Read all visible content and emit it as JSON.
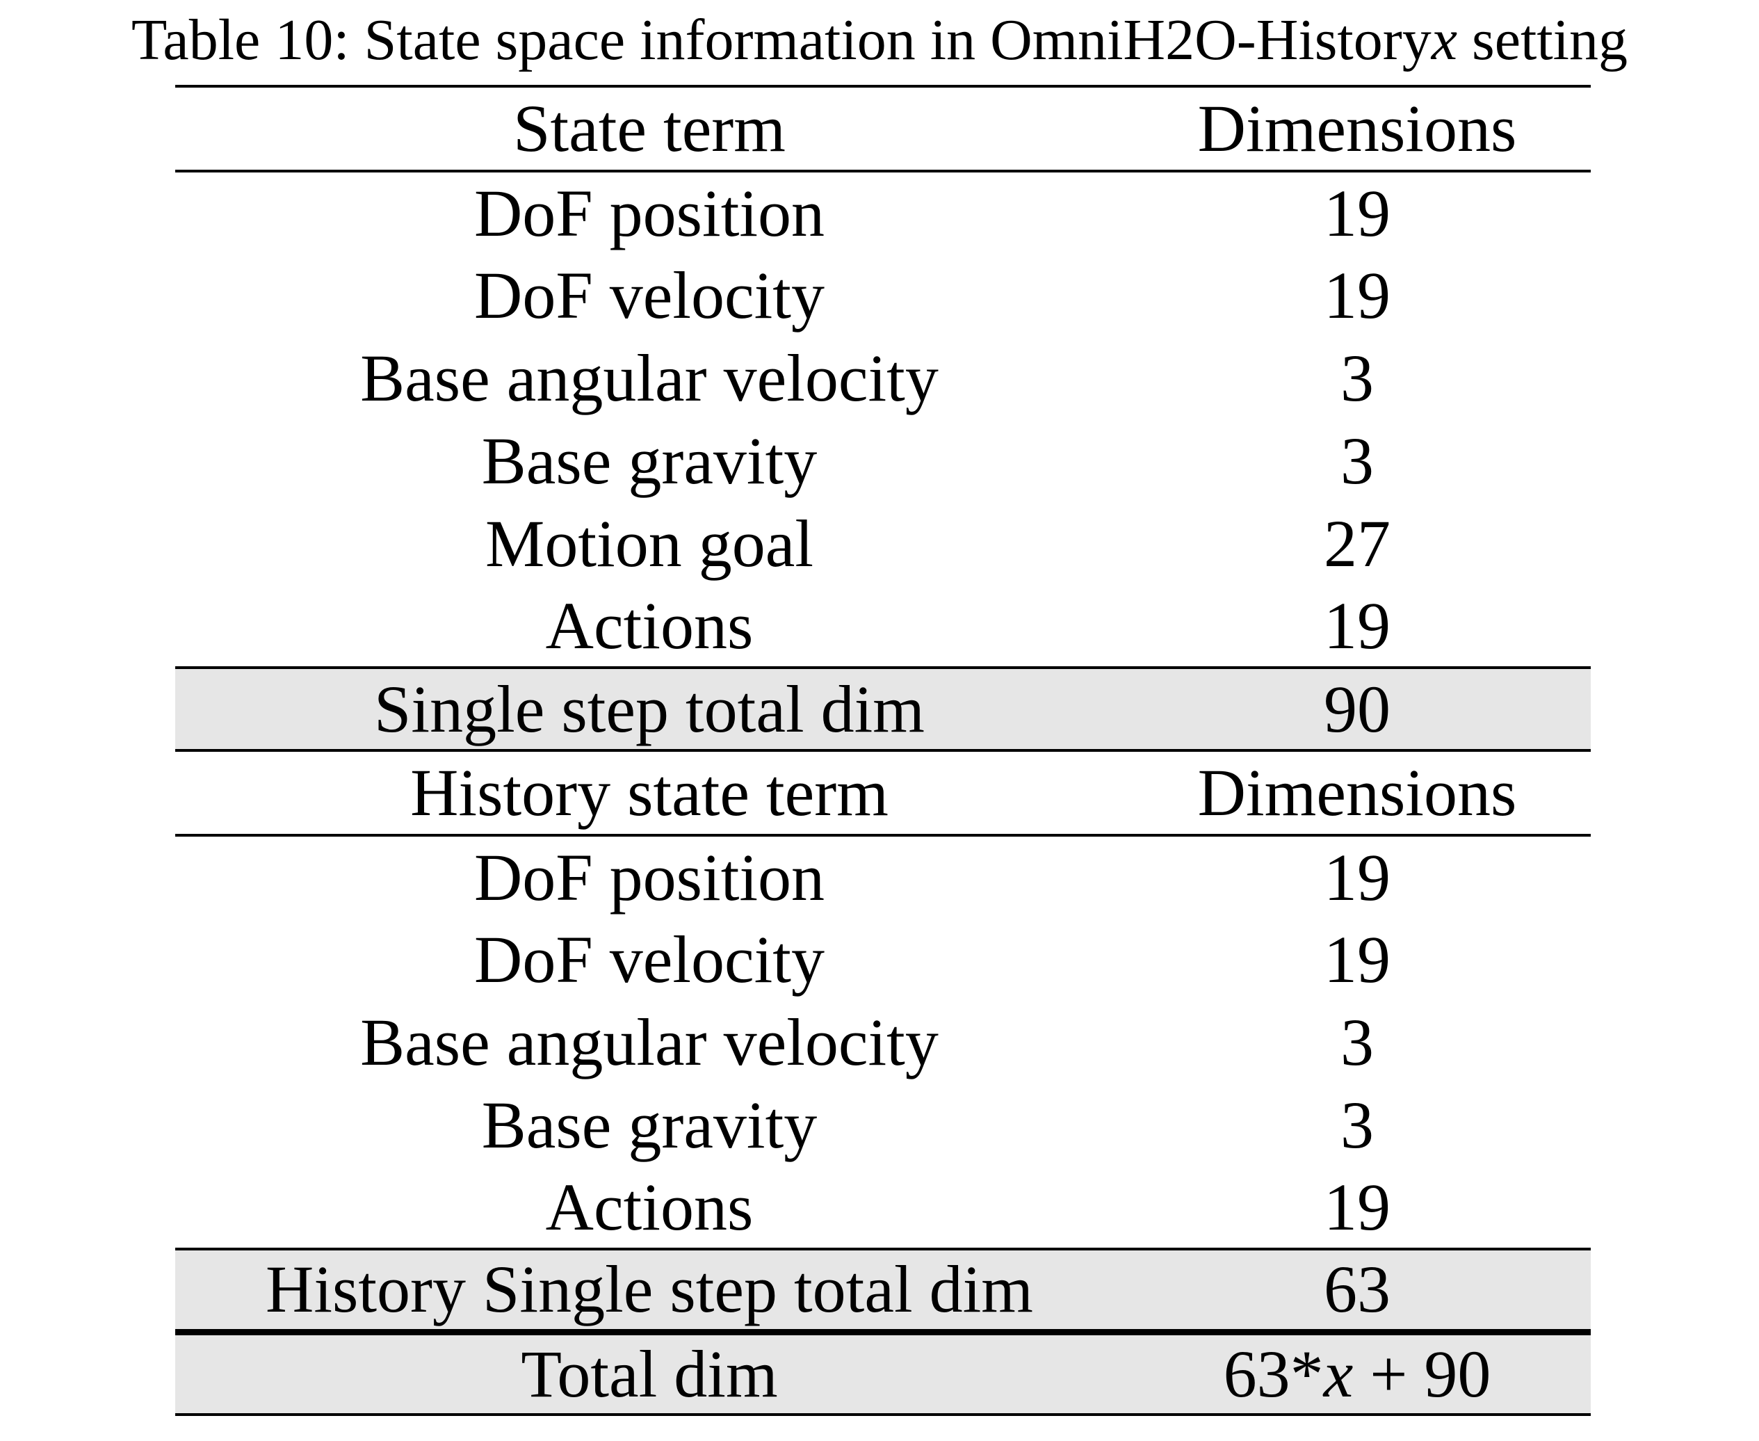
{
  "caption": {
    "prefix": "Table 10: State space information in OmniH2O-History",
    "variable": "x",
    "suffix": " setting"
  },
  "table": {
    "section1": {
      "headers": [
        "State term",
        "Dimensions"
      ],
      "rows": [
        {
          "term": "DoF position",
          "dim": "19"
        },
        {
          "term": "DoF velocity",
          "dim": "19"
        },
        {
          "term": "Base angular velocity",
          "dim": "3"
        },
        {
          "term": "Base gravity",
          "dim": "3"
        },
        {
          "term": "Motion goal",
          "dim": "27"
        },
        {
          "term": "Actions",
          "dim": "19"
        }
      ],
      "total": {
        "term": "Single step total dim",
        "dim": "90"
      }
    },
    "section2": {
      "headers": [
        "History state term",
        "Dimensions"
      ],
      "rows": [
        {
          "term": "DoF position",
          "dim": "19"
        },
        {
          "term": "DoF velocity",
          "dim": "19"
        },
        {
          "term": "Base angular velocity",
          "dim": "3"
        },
        {
          "term": "Base gravity",
          "dim": "3"
        },
        {
          "term": "Actions",
          "dim": "19"
        }
      ],
      "total": {
        "term": "History Single step total dim",
        "dim": "63"
      }
    },
    "grand_total": {
      "term": "Total dim",
      "dim_prefix": "63*",
      "dim_var": "x",
      "dim_suffix": " + 90"
    }
  }
}
